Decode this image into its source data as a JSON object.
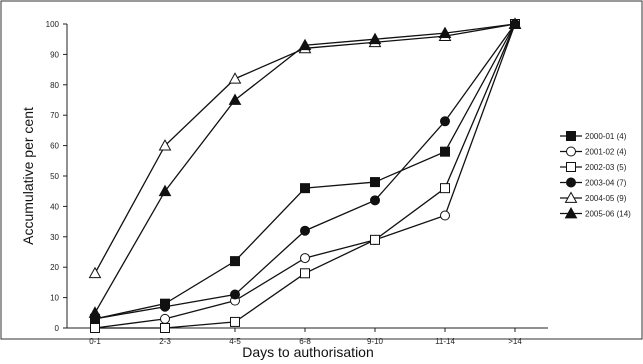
{
  "chart_data": {
    "type": "line",
    "categories": [
      "0-1",
      "2-3",
      "4-5",
      "6-8",
      "9-10",
      "11-14",
      ">14"
    ],
    "xlabel": "Days to authorisation",
    "ylabel": "Accumulative per cent",
    "ylim": [
      0,
      100
    ],
    "yticks": [
      "0",
      "10",
      "20",
      "30",
      "40",
      "50",
      "60",
      "70",
      "80",
      "90",
      "100"
    ],
    "legend_position": "right",
    "series": [
      {
        "name": "2000-01 (4)",
        "marker": "square-filled",
        "values": [
          3,
          8,
          22,
          46,
          48,
          58,
          100
        ]
      },
      {
        "name": "2001-02 (4)",
        "marker": "circle-open",
        "values": [
          0,
          3,
          9,
          23,
          29,
          37,
          100
        ]
      },
      {
        "name": "2002-03 (5)",
        "marker": "square-open",
        "values": [
          0,
          0,
          2,
          18,
          29,
          46,
          100
        ]
      },
      {
        "name": "2003-04 (7)",
        "marker": "circle-filled",
        "values": [
          3,
          7,
          11,
          32,
          42,
          68,
          100
        ]
      },
      {
        "name": "2004-05 (9)",
        "marker": "triangle-open",
        "values": [
          18,
          60,
          82,
          92,
          94,
          96,
          100
        ]
      },
      {
        "name": "2005-06 (14)",
        "marker": "triangle-filled",
        "values": [
          5,
          45,
          75,
          93,
          95,
          97,
          100
        ]
      }
    ]
  }
}
